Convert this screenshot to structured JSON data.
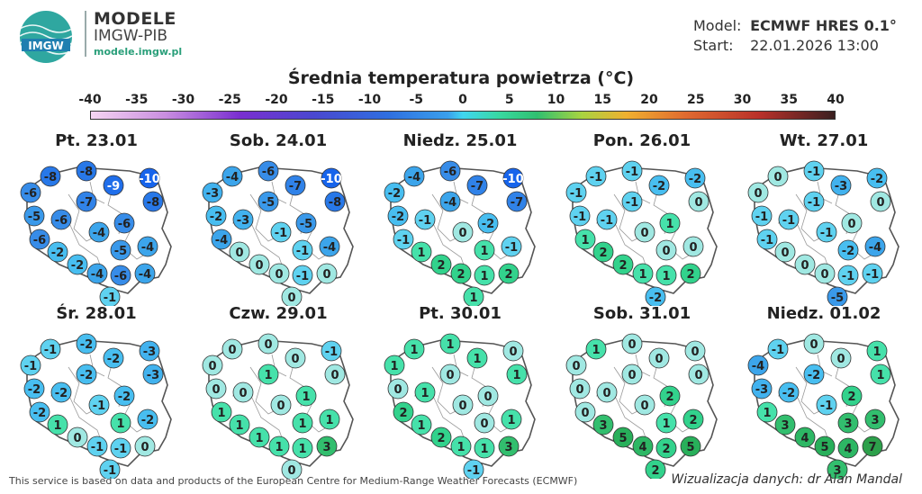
{
  "brand": {
    "name": "MODELE",
    "org": "IMGW-PIB",
    "site": "modele.imgw.pl",
    "logo_text": "IMGW"
  },
  "meta": {
    "model_label": "Model:",
    "model_value": "ECMWF HRES 0.1°",
    "start_label": "Start:",
    "start_value": "22.01.2026 13:00"
  },
  "title": "Średnia temperatura powietrza (°C)",
  "scale": {
    "ticks": [
      "-40",
      "-35",
      "-30",
      "-25",
      "-20",
      "-15",
      "-10",
      "-5",
      "0",
      "5",
      "10",
      "15",
      "20",
      "25",
      "30",
      "35",
      "40"
    ]
  },
  "colors": {
    "border": "#555555",
    "map_fill": "#ffffff",
    "text_dark": "#222222"
  },
  "days": [
    {
      "label": "Pt. 23.01",
      "values": [
        -8,
        -8,
        -10,
        -6,
        -9,
        -8,
        -7,
        -5,
        -6,
        -6,
        -4,
        -6,
        -2,
        -5,
        -4,
        -2,
        -4,
        -6,
        -4,
        -1
      ]
    },
    {
      "label": "Sob. 24.01",
      "values": [
        -4,
        -6,
        -10,
        -3,
        -7,
        -8,
        -5,
        -2,
        -3,
        -5,
        -1,
        -4,
        0,
        -1,
        -4,
        0,
        0,
        -1,
        0,
        0
      ]
    },
    {
      "label": "Niedz. 25.01",
      "values": [
        -4,
        -6,
        -10,
        -2,
        -7,
        -7,
        -4,
        -2,
        -1,
        -2,
        0,
        -1,
        1,
        1,
        -1,
        2,
        2,
        1,
        2,
        1
      ]
    },
    {
      "label": "Pon. 26.01",
      "values": [
        -1,
        -1,
        -2,
        -1,
        -2,
        0,
        -1,
        -1,
        -1,
        1,
        0,
        1,
        2,
        0,
        0,
        2,
        1,
        1,
        2,
        -2
      ]
    },
    {
      "label": "Wt. 27.01",
      "values": [
        0,
        -1,
        -2,
        0,
        -3,
        0,
        -1,
        -1,
        -1,
        0,
        -1,
        -1,
        0,
        -2,
        -4,
        0,
        0,
        -1,
        -1,
        -5
      ]
    },
    {
      "label": "Śr. 28.01",
      "values": [
        -1,
        -2,
        -3,
        -1,
        -2,
        -3,
        -2,
        -2,
        -2,
        -2,
        -1,
        -2,
        1,
        1,
        -2,
        0,
        -1,
        -1,
        0,
        -1
      ]
    },
    {
      "label": "Czw. 29.01",
      "values": [
        0,
        0,
        -1,
        0,
        0,
        0,
        1,
        0,
        0,
        1,
        0,
        1,
        1,
        1,
        1,
        1,
        1,
        1,
        3,
        0
      ]
    },
    {
      "label": "Pt. 30.01",
      "values": [
        1,
        1,
        0,
        1,
        1,
        1,
        0,
        0,
        1,
        0,
        0,
        2,
        1,
        0,
        1,
        2,
        1,
        1,
        3,
        -1
      ]
    },
    {
      "label": "Sob. 31.01",
      "values": [
        1,
        0,
        0,
        0,
        0,
        0,
        0,
        0,
        0,
        2,
        0,
        0,
        3,
        1,
        2,
        5,
        4,
        2,
        5,
        2
      ]
    },
    {
      "label": "Niedz. 01.02",
      "values": [
        -1,
        0,
        1,
        -4,
        0,
        1,
        -2,
        -3,
        -2,
        2,
        -1,
        1,
        3,
        3,
        3,
        4,
        5,
        4,
        7,
        3
      ]
    }
  ],
  "footer": {
    "source": "This service is based on data and products of the European Centre for Medium-Range Weather Forecasts (ECMWF)",
    "credit": "Wizualizacja danych: dr Alan Mandal"
  }
}
